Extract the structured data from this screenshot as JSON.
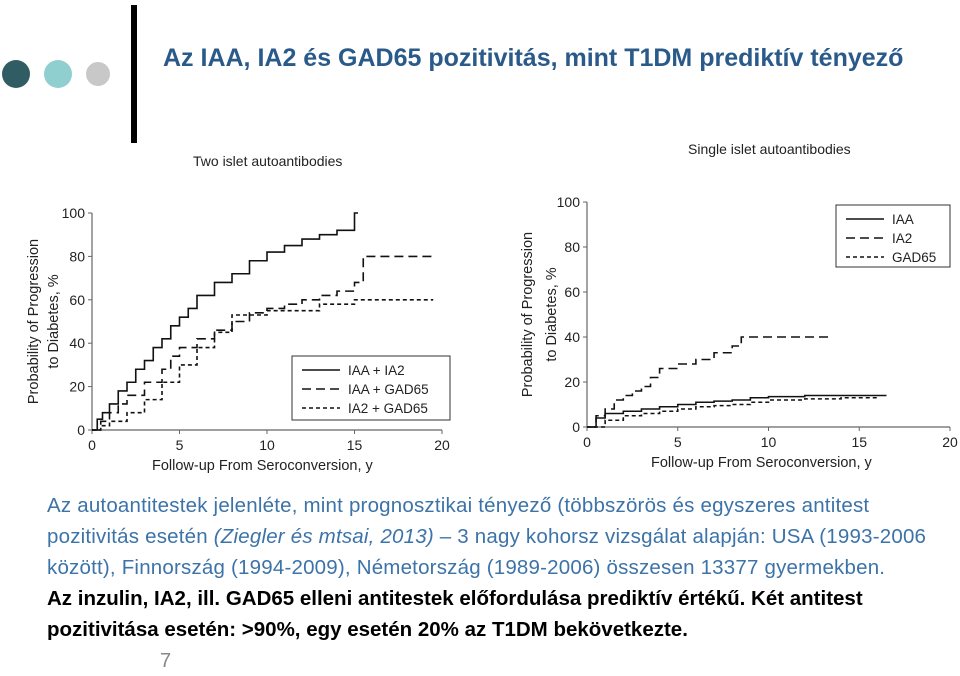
{
  "slide": {
    "title": "Az IAA, IA2 és GAD65 pozitivitás, mint T1DM prediktív tényező",
    "page_number": "7",
    "bullet_colors": [
      "#2f5d63",
      "#8fcfcf",
      "#c8c8c8"
    ],
    "body": {
      "p1": "Az autoantitestek jelenléte, mint prognosztikai tényező (többszörös és egyszeres antitest pozitivitás esetén ",
      "cite": "(Ziegler és mtsai, 2013)",
      "p2": " – 3 nagy kohorsz vizsgálat alapján: USA (1993-2006 között), Finnország (1994-2009), Németország (1989-2006) összesen 13377 gyermekben.",
      "bold1": "Az inzulin, IA2, ill. GAD65 elleni antitestek előfordulása prediktív értékű. Két antitest pozitivitása esetén: >90%, egy esetén 20% az T1DM bekövetkezte."
    }
  },
  "chart_data": [
    {
      "type": "line",
      "step": true,
      "title": "Two islet autoantibodies",
      "xlabel": "Follow-up From Seroconversion, y",
      "ylabel_line1": "Probability of Progression",
      "ylabel_line2": "to Diabetes, %",
      "xlim": [
        0,
        20
      ],
      "ylim": [
        0,
        100
      ],
      "xticks": [
        0,
        5,
        10,
        15,
        20
      ],
      "yticks": [
        0,
        20,
        40,
        60,
        80,
        100
      ],
      "legend_position": "bottom-right",
      "series": [
        {
          "name": "IAA + IA2",
          "dash": "solid",
          "x": [
            0,
            0.3,
            0.6,
            1,
            1.5,
            2,
            2.5,
            3,
            3.5,
            4,
            4.5,
            5,
            5.5,
            6,
            7,
            8,
            9,
            10,
            11,
            12,
            13,
            14,
            15,
            15.2
          ],
          "y": [
            0,
            5,
            8,
            12,
            18,
            22,
            28,
            32,
            38,
            42,
            48,
            52,
            56,
            62,
            68,
            72,
            78,
            82,
            85,
            88,
            90,
            92,
            100,
            100
          ]
        },
        {
          "name": "IAA + GAD65",
          "dash": "dashed",
          "x": [
            0,
            0.5,
            1,
            1.5,
            2,
            3,
            4,
            4.5,
            5,
            6,
            7,
            8,
            9,
            10,
            11,
            12,
            13,
            14,
            15,
            15.5,
            17,
            19.5
          ],
          "y": [
            0,
            4,
            8,
            12,
            16,
            22,
            28,
            34,
            38,
            42,
            46,
            50,
            54,
            56,
            58,
            60,
            62,
            64,
            68,
            80,
            80,
            80
          ]
        },
        {
          "name": "IA2 + GAD65",
          "dash": "dotted",
          "x": [
            0,
            0.5,
            1,
            2,
            3,
            4,
            5,
            6,
            7,
            8,
            10,
            13,
            15,
            19.5
          ],
          "y": [
            0,
            2,
            4,
            8,
            14,
            22,
            30,
            38,
            45,
            53,
            55,
            58,
            60,
            60
          ]
        }
      ]
    },
    {
      "type": "line",
      "step": true,
      "title": "Single islet autoantibodies",
      "xlabel": "Follow-up From Seroconversion, y",
      "ylabel_line1": "Probability of Progression",
      "ylabel_line2": "to Diabetes, %",
      "xlim": [
        0,
        20
      ],
      "ylim": [
        0,
        100
      ],
      "xticks": [
        0,
        5,
        10,
        15,
        20
      ],
      "yticks": [
        0,
        20,
        40,
        60,
        80,
        100
      ],
      "legend_position": "top-right",
      "series": [
        {
          "name": "IAA",
          "dash": "solid",
          "x": [
            0,
            0.5,
            1,
            2,
            3,
            4,
            5,
            6,
            7,
            8,
            9,
            10,
            12,
            14,
            16.5
          ],
          "y": [
            0,
            4,
            6,
            7,
            8,
            9,
            10,
            11,
            11.5,
            12,
            13,
            13.5,
            14,
            14,
            14
          ]
        },
        {
          "name": "IA2",
          "dash": "dashed",
          "x": [
            0,
            0.5,
            1,
            1.5,
            2,
            2.5,
            3,
            3.5,
            4,
            5,
            6,
            7,
            8,
            8.5,
            10,
            12,
            13.5
          ],
          "y": [
            0,
            5,
            8,
            12,
            14,
            16,
            18,
            22,
            26,
            28,
            30,
            33,
            36,
            40,
            40,
            40,
            40
          ]
        },
        {
          "name": "GAD65",
          "dash": "dotted",
          "x": [
            0,
            1,
            2,
            3,
            4,
            5,
            6,
            7,
            8,
            9,
            10,
            12,
            14,
            16
          ],
          "y": [
            0,
            3,
            5,
            6,
            7,
            8,
            9,
            9.5,
            10,
            11,
            12,
            12.5,
            13,
            13
          ]
        }
      ]
    }
  ]
}
